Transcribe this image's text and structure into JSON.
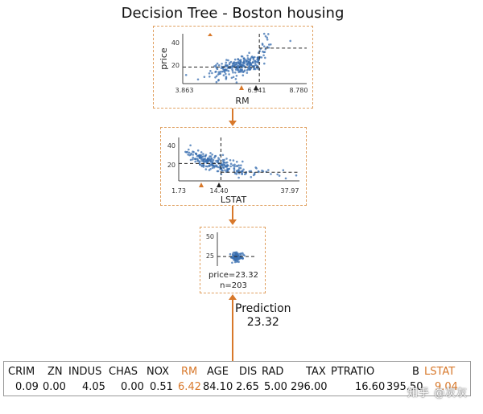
{
  "title": "Decision Tree - Boston housing",
  "colors": {
    "accent": "#d8782a",
    "node_border": "#e0a060",
    "points": "#3a6fb0"
  },
  "nodes": [
    {
      "id": "root",
      "feature": "RM",
      "ylabel": "price",
      "yticks": [
        "20",
        "40"
      ],
      "xticks": [
        "3.863",
        "6.941",
        "8.780"
      ],
      "split": 6.941,
      "x_range": [
        3.863,
        8.78
      ],
      "y_range": [
        5,
        50
      ],
      "left_mean": 20,
      "right_mean": 37
    },
    {
      "id": "mid",
      "feature": "LSTAT",
      "yticks": [
        "20",
        "40"
      ],
      "xticks": [
        "1.73",
        "14.40",
        "37.97"
      ],
      "split": 14.4,
      "x_range": [
        1.73,
        37.97
      ],
      "y_range": [
        5,
        50
      ],
      "left_mean": 23,
      "right_mean": 14
    },
    {
      "id": "leaf",
      "yticks": [
        "25",
        "50"
      ],
      "leaf_value": "price=23.32",
      "leaf_n": "n=203",
      "y_range": [
        10,
        55
      ],
      "mean": 23.32
    }
  ],
  "prediction": {
    "label": "Prediction",
    "value": "23.32"
  },
  "instance": {
    "features": [
      "CRIM",
      "ZN",
      "INDUS",
      "CHAS",
      "NOX",
      "RM",
      "AGE",
      "DIS",
      "RAD",
      "TAX",
      "PTRATIO",
      "B",
      "LSTAT"
    ],
    "values": [
      "0.09",
      "0.00",
      "4.05",
      "0.00",
      "0.51",
      "6.42",
      "84.10",
      "2.65",
      "5.00",
      "296.00",
      "16.60",
      "395.50",
      "9.04"
    ],
    "highlighted": [
      "RM",
      "LSTAT"
    ]
  },
  "watermark": "知乎 @灰灰"
}
